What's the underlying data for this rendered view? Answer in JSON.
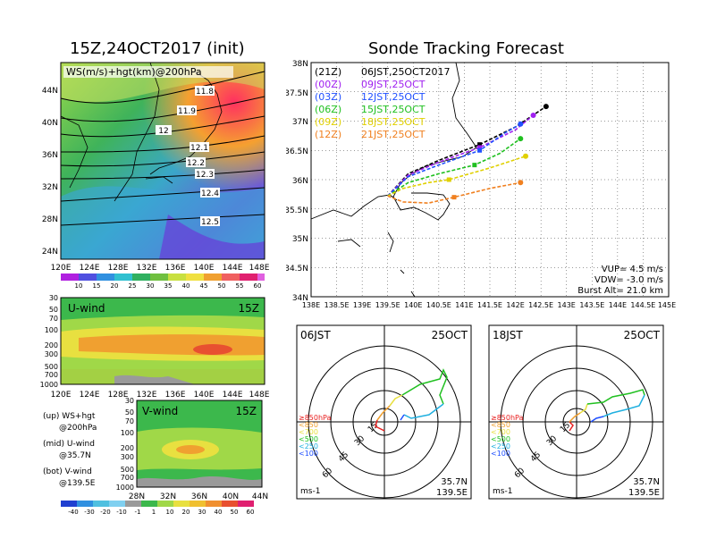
{
  "left": {
    "map_title": "15Z,24OCT2017 (init)",
    "map_label": "WS(m/s)+hgt(km)@200hPa",
    "contours": [
      "11.8",
      "11.9",
      "12",
      "12.1",
      "12.2",
      "12.3",
      "12.4",
      "12.5"
    ],
    "lat_ticks": [
      "44N",
      "40N",
      "36N",
      "32N",
      "28N",
      "24N"
    ],
    "lon_ticks": [
      "120E",
      "124E",
      "128E",
      "132E",
      "136E",
      "140E",
      "144E",
      "148E"
    ],
    "colorbar_ticks": [
      "10",
      "15",
      "20",
      "25",
      "30",
      "35",
      "40",
      "45",
      "50",
      "55",
      "60"
    ],
    "uwind": {
      "label": "U-wind",
      "time": "15Z",
      "p_ticks": [
        "30",
        "50",
        "70",
        "100",
        "200",
        "300",
        "500",
        "700",
        "1000"
      ]
    },
    "vwind": {
      "label": "V-wind",
      "time": "15Z",
      "lat_ticks": [
        "28N",
        "32N",
        "36N",
        "40N",
        "44N"
      ],
      "p_ticks": [
        "30",
        "50",
        "70",
        "100",
        "200",
        "300",
        "500",
        "700",
        "1000"
      ]
    },
    "legend": [
      "(up) WS+hgt",
      "@200hPa",
      "(mid) U-wind",
      "@35.7N",
      "(bot) V-wind",
      "@139.5E"
    ],
    "bottom_colorbar_ticks": [
      "-40",
      "-30",
      "-20",
      "-10",
      "-1",
      "1",
      "10",
      "20",
      "30",
      "40",
      "50",
      "60"
    ]
  },
  "right": {
    "title": "Sonde Tracking Forecast",
    "lat_ticks": [
      "38N",
      "37.5N",
      "37N",
      "36.5N",
      "36N",
      "35.5N",
      "35N",
      "34.5N",
      "34N"
    ],
    "lon_ticks": [
      "138E",
      "138.5E",
      "139E",
      "139.5E",
      "140E",
      "140.5E",
      "141E",
      "141.5E",
      "142E",
      "142.5E",
      "143E",
      "143.5E",
      "144E",
      "144.5E",
      "145E"
    ],
    "legend": [
      {
        "utc": "(21Z)",
        "jst": "06JST,25OCT2017",
        "color": "#000000"
      },
      {
        "utc": "(00Z)",
        "jst": "09JST,25OCT",
        "color": "#a020f0"
      },
      {
        "utc": "(03Z)",
        "jst": "12JST,25OCT",
        "color": "#2050ff"
      },
      {
        "utc": "(06Z)",
        "jst": "15JST,25OCT",
        "color": "#20c020"
      },
      {
        "utc": "(09Z)",
        "jst": "18JST,25OCT",
        "color": "#e0d000"
      },
      {
        "utc": "(12Z)",
        "jst": "21JST,25OCT",
        "color": "#f08020"
      }
    ],
    "params": [
      "VUP= 4.5 m/s",
      "VDW= -3.0 m/s",
      "Burst Alt= 21.0 km"
    ],
    "hodo1": {
      "time": "06JST",
      "date": "25OCT",
      "loc1": "35.7N",
      "loc2": "139.5E",
      "unit": "ms-1"
    },
    "hodo2": {
      "time": "18JST",
      "date": "25OCT",
      "loc1": "35.7N",
      "loc2": "139.5E",
      "unit": "ms-1"
    },
    "hodo_rings": [
      "15",
      "30",
      "45",
      "60"
    ],
    "hodo_levels": [
      "≥850hPa",
      "<850",
      "<700",
      "<500",
      "<250",
      "<100"
    ]
  },
  "chart_data": {
    "type": "line",
    "title": "Sonde Tracking Forecast",
    "xlabel": "",
    "ylabel": "",
    "xlim": [
      138,
      145
    ],
    "ylim": [
      34,
      38
    ],
    "series": [
      {
        "name": "(21Z) 06JST,25OCT2017",
        "x": [
          139.5,
          139.9,
          140.5,
          141.3,
          142.0,
          142.6
        ],
        "y": [
          35.72,
          36.1,
          36.33,
          36.6,
          36.9,
          37.25
        ]
      },
      {
        "name": "(00Z) 09JST,25OCT",
        "x": [
          139.5,
          139.9,
          140.5,
          141.3,
          142.0,
          142.35
        ],
        "y": [
          35.72,
          36.08,
          36.3,
          36.55,
          36.85,
          37.1
        ]
      },
      {
        "name": "(03Z) 12JST,25OCT",
        "x": [
          139.5,
          139.9,
          140.5,
          141.3,
          141.8,
          142.1
        ],
        "y": [
          35.72,
          36.05,
          36.25,
          36.5,
          36.8,
          36.95
        ]
      },
      {
        "name": "(06Z) 15JST,25OCT",
        "x": [
          139.5,
          139.9,
          140.5,
          141.2,
          141.7,
          142.1
        ],
        "y": [
          35.72,
          35.95,
          36.1,
          36.25,
          36.45,
          36.7
        ]
      },
      {
        "name": "(09Z) 18JST,25OCT",
        "x": [
          139.5,
          139.8,
          140.3,
          140.7,
          141.5,
          142.2
        ],
        "y": [
          35.72,
          35.85,
          35.95,
          36.0,
          36.2,
          36.4
        ]
      },
      {
        "name": "(12Z) 21JST,25OCT",
        "x": [
          139.5,
          139.8,
          140.3,
          140.8,
          141.5,
          142.1
        ],
        "y": [
          35.72,
          35.62,
          35.6,
          35.7,
          35.85,
          35.95
        ]
      }
    ]
  }
}
